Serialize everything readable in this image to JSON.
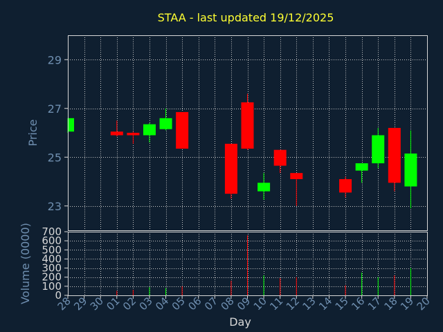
{
  "colors": {
    "background": "#0f1f30",
    "axis": "#d8d8d8",
    "grid": "#c8c8c8",
    "title": "#ffff33",
    "label": "#6f8fb0",
    "up": "#00ff00",
    "down": "#ff0000"
  },
  "chart_data": [
    {
      "type": "candlestick",
      "title": "STAA - last updated 19/12/2025",
      "ylabel": "Price",
      "ylim": [
        22,
        30
      ],
      "yticks": [
        "23",
        "25",
        "27",
        "29"
      ],
      "grid": true,
      "x_tick_labels": [
        "28",
        "29",
        "30",
        "01",
        "02",
        "03",
        "04",
        "05",
        "06",
        "07",
        "08",
        "09",
        "10",
        "11",
        "12",
        "13",
        "14",
        "15",
        "16",
        "17",
        "18",
        "19",
        "20"
      ],
      "candles": [
        {
          "day": "28",
          "open": 26.05,
          "high": 26.6,
          "low": 26.0,
          "close": 26.6
        },
        {
          "day": "01",
          "open": 26.05,
          "high": 26.5,
          "low": 25.85,
          "close": 25.9
        },
        {
          "day": "02",
          "open": 26.0,
          "high": 26.05,
          "low": 25.55,
          "close": 25.9
        },
        {
          "day": "03",
          "open": 25.9,
          "high": 26.4,
          "low": 25.6,
          "close": 26.35
        },
        {
          "day": "04",
          "open": 26.15,
          "high": 27.0,
          "low": 26.1,
          "close": 26.6
        },
        {
          "day": "05",
          "open": 26.85,
          "high": 26.85,
          "low": 25.35,
          "close": 25.35
        },
        {
          "day": "08",
          "open": 25.55,
          "high": 25.55,
          "low": 23.3,
          "close": 23.5
        },
        {
          "day": "09",
          "open": 27.25,
          "high": 27.6,
          "low": 25.3,
          "close": 25.35
        },
        {
          "day": "10",
          "open": 23.6,
          "high": 24.35,
          "low": 23.25,
          "close": 23.95
        },
        {
          "day": "11",
          "open": 25.3,
          "high": 25.3,
          "low": 24.35,
          "close": 24.65
        },
        {
          "day": "12",
          "open": 24.35,
          "high": 24.35,
          "low": 23.0,
          "close": 24.1
        },
        {
          "day": "15",
          "open": 24.1,
          "high": 24.2,
          "low": 23.35,
          "close": 23.55
        },
        {
          "day": "16",
          "open": 24.45,
          "high": 24.75,
          "low": 23.95,
          "close": 24.75
        },
        {
          "day": "17",
          "open": 24.75,
          "high": 26.2,
          "low": 24.55,
          "close": 25.9
        },
        {
          "day": "18",
          "open": 26.2,
          "high": 26.2,
          "low": 23.6,
          "close": 23.95
        },
        {
          "day": "19",
          "open": 23.8,
          "high": 26.1,
          "low": 22.9,
          "close": 25.15
        }
      ]
    },
    {
      "type": "bar",
      "ylabel": "Volume (0000)",
      "xlabel": "Day",
      "ylim": [
        0,
        700
      ],
      "yticks": [
        "0",
        "100",
        "200",
        "300",
        "400",
        "500",
        "600",
        "700"
      ],
      "grid": true,
      "series": [
        {
          "categories": [
            "01",
            "02",
            "03",
            "04",
            "05",
            "08",
            "09",
            "10",
            "11",
            "12",
            "15",
            "16",
            "17",
            "18",
            "19"
          ],
          "values": [
            50,
            60,
            90,
            80,
            100,
            160,
            660,
            220,
            190,
            200,
            110,
            250,
            200,
            220,
            300
          ],
          "direction": [
            "down",
            "down",
            "up",
            "up",
            "down",
            "down",
            "down",
            "up",
            "down",
            "down",
            "down",
            "up",
            "up",
            "down",
            "up"
          ]
        }
      ]
    }
  ]
}
